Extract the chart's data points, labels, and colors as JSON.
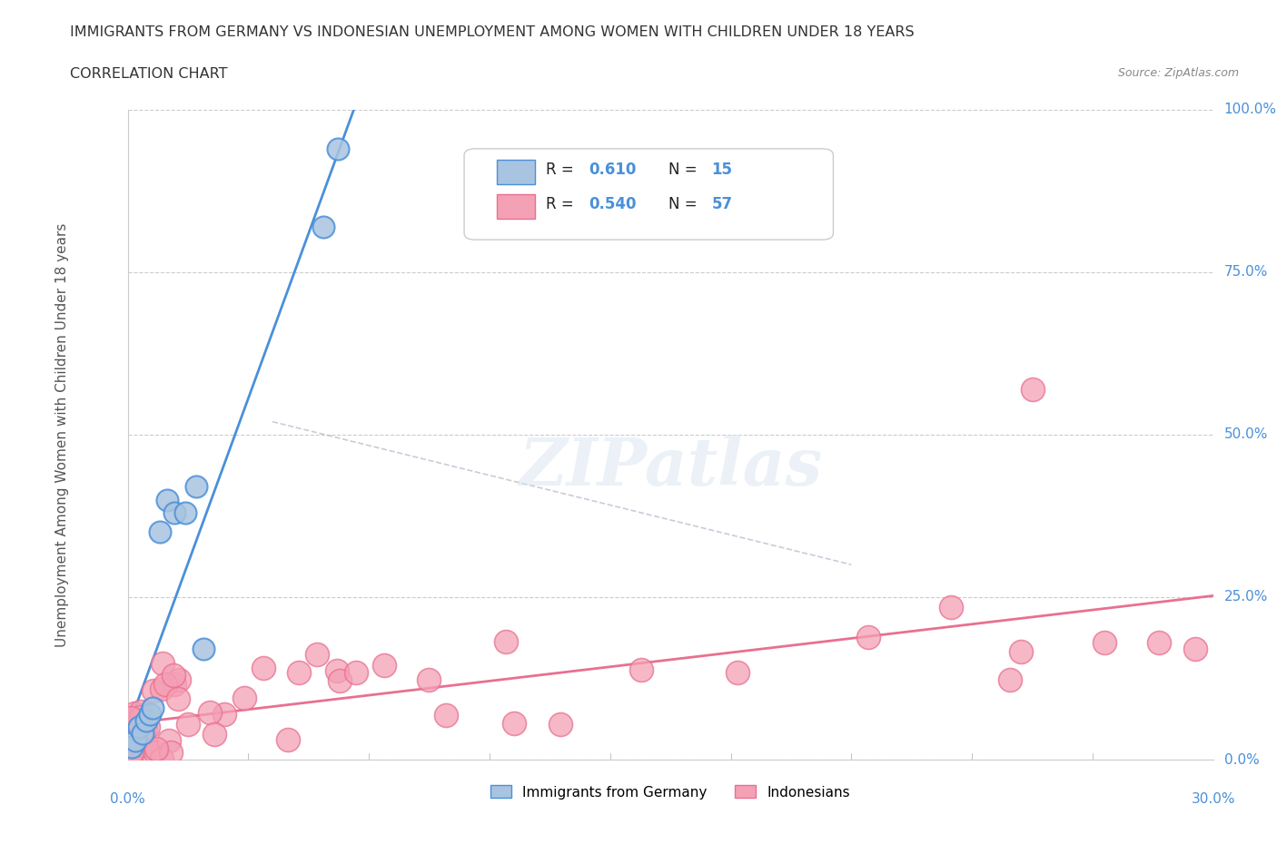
{
  "title": "IMMIGRANTS FROM GERMANY VS INDONESIAN UNEMPLOYMENT AMONG WOMEN WITH CHILDREN UNDER 18 YEARS",
  "subtitle": "CORRELATION CHART",
  "source": "Source: ZipAtlas.com",
  "ylabel": "Unemployment Among Women with Children Under 18 years",
  "ylabel_right_ticks": [
    "0.0%",
    "25.0%",
    "50.0%",
    "75.0%",
    "100.0%"
  ],
  "ylabel_right_values": [
    0.0,
    0.25,
    0.5,
    0.75,
    1.0
  ],
  "r_germany": 0.61,
  "n_germany": 15,
  "r_indonesian": 0.54,
  "n_indonesian": 57,
  "color_germany": "#a8c4e0",
  "color_indonesian": "#f4a0b5",
  "color_germany_line": "#4a90d9",
  "color_indonesian_line": "#e87090",
  "legend_label_germany": "Immigrants from Germany",
  "legend_label_indonesian": "Indonesians",
  "background_color": "#ffffff"
}
